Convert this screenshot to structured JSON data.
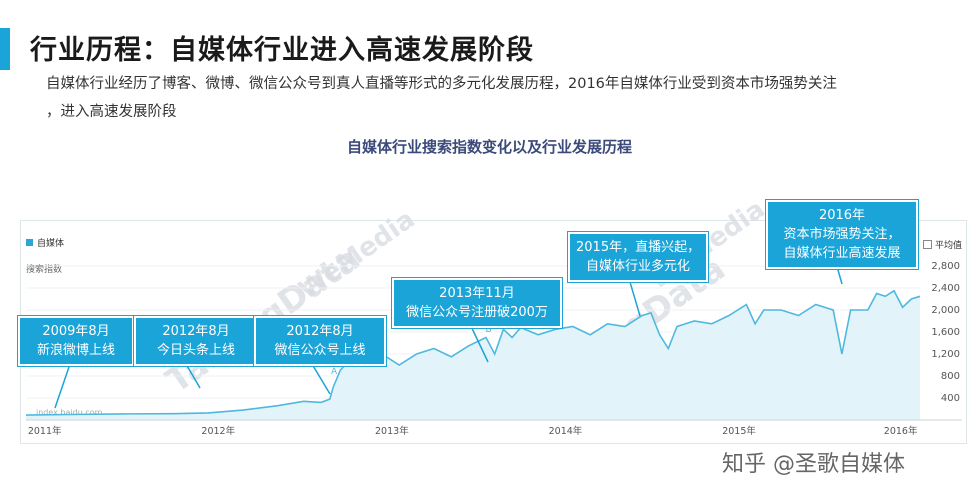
{
  "header": {
    "title": "行业历程：自媒体行业进入高速发展阶段",
    "desc_line1": "自媒体行业经历了博客、微博、微信公众号到真人直播等形式的多元化发展历程，2016年自媒体行业受到资本市场强势关注",
    "desc_line2": "，进入高速发展阶段"
  },
  "accent_color": "#1ba4d8",
  "chart_data": {
    "type": "area",
    "title": "自媒体行业搜索指数变化以及行业发展历程",
    "ylabel": "搜索指数",
    "legend": "自媒体",
    "avg_label": "平均值",
    "source": "index.baidu.com",
    "watermark": [
      "WeMedia",
      "TalkingData"
    ],
    "x_ticks": [
      2011,
      2012,
      2013,
      2014,
      2015,
      2016
    ],
    "x_tick_labels": [
      "2011年",
      "2012年",
      "2013年",
      "2014年",
      "2015年",
      "2016年"
    ],
    "y_ticks": [
      400,
      800,
      1200,
      1600,
      2000,
      2400,
      2800
    ],
    "ylim": [
      0,
      3000
    ],
    "xlim": [
      2010.95,
      2016.1
    ],
    "series": [
      {
        "values": [
          [
            2010.95,
            90
          ],
          [
            2011.2,
            100
          ],
          [
            2011.5,
            110
          ],
          [
            2011.8,
            115
          ],
          [
            2012.0,
            130
          ],
          [
            2012.2,
            180
          ],
          [
            2012.4,
            260
          ],
          [
            2012.55,
            340
          ],
          [
            2012.65,
            320
          ],
          [
            2012.7,
            380
          ],
          [
            2012.72,
            600
          ],
          [
            2012.76,
            900
          ],
          [
            2012.8,
            1050
          ],
          [
            2012.85,
            1000
          ],
          [
            2012.9,
            1150
          ],
          [
            2013.0,
            1200
          ],
          [
            2013.1,
            1000
          ],
          [
            2013.2,
            1200
          ],
          [
            2013.3,
            1300
          ],
          [
            2013.4,
            1150
          ],
          [
            2013.5,
            1350
          ],
          [
            2013.6,
            1500
          ],
          [
            2013.65,
            1200
          ],
          [
            2013.7,
            1650
          ],
          [
            2013.75,
            1500
          ],
          [
            2013.8,
            1680
          ],
          [
            2013.9,
            1550
          ],
          [
            2014.0,
            1650
          ],
          [
            2014.1,
            1700
          ],
          [
            2014.2,
            1550
          ],
          [
            2014.3,
            1750
          ],
          [
            2014.4,
            1700
          ],
          [
            2014.5,
            1900
          ],
          [
            2014.55,
            1950
          ],
          [
            2014.6,
            1550
          ],
          [
            2014.65,
            1300
          ],
          [
            2014.7,
            1700
          ],
          [
            2014.8,
            1800
          ],
          [
            2014.9,
            1750
          ],
          [
            2015.0,
            1900
          ],
          [
            2015.1,
            2100
          ],
          [
            2015.15,
            1750
          ],
          [
            2015.2,
            2000
          ],
          [
            2015.3,
            2000
          ],
          [
            2015.4,
            1900
          ],
          [
            2015.5,
            2100
          ],
          [
            2015.6,
            2000
          ],
          [
            2015.65,
            1200
          ],
          [
            2015.7,
            2000
          ],
          [
            2015.8,
            2000
          ],
          [
            2015.85,
            2300
          ],
          [
            2015.9,
            2250
          ],
          [
            2015.95,
            2350
          ],
          [
            2016.0,
            2050
          ],
          [
            2016.05,
            2200
          ],
          [
            2016.1,
            2250
          ]
        ]
      }
    ],
    "annotations": [
      {
        "title": "2009年8月",
        "text": "新浪微博上线"
      },
      {
        "title": "2012年8月",
        "text": "今日头条上线"
      },
      {
        "title": "2012年8月",
        "text": "微信公众号上线"
      },
      {
        "title": "2013年11月",
        "text": "微信公众号注册破200万"
      },
      {
        "title": "2015年，直播兴起，",
        "text": "自媒体行业多元化"
      },
      {
        "title": "2016年",
        "text": "资本市场强势关注，",
        "text3": "自媒体行业高速发展"
      }
    ],
    "point_labels": [
      "A",
      "B"
    ],
    "line_color": "#4fb8df",
    "fill_color": "#e3f3fa"
  },
  "footer": {
    "watermark_text": "知乎 @圣歌自媒体"
  }
}
